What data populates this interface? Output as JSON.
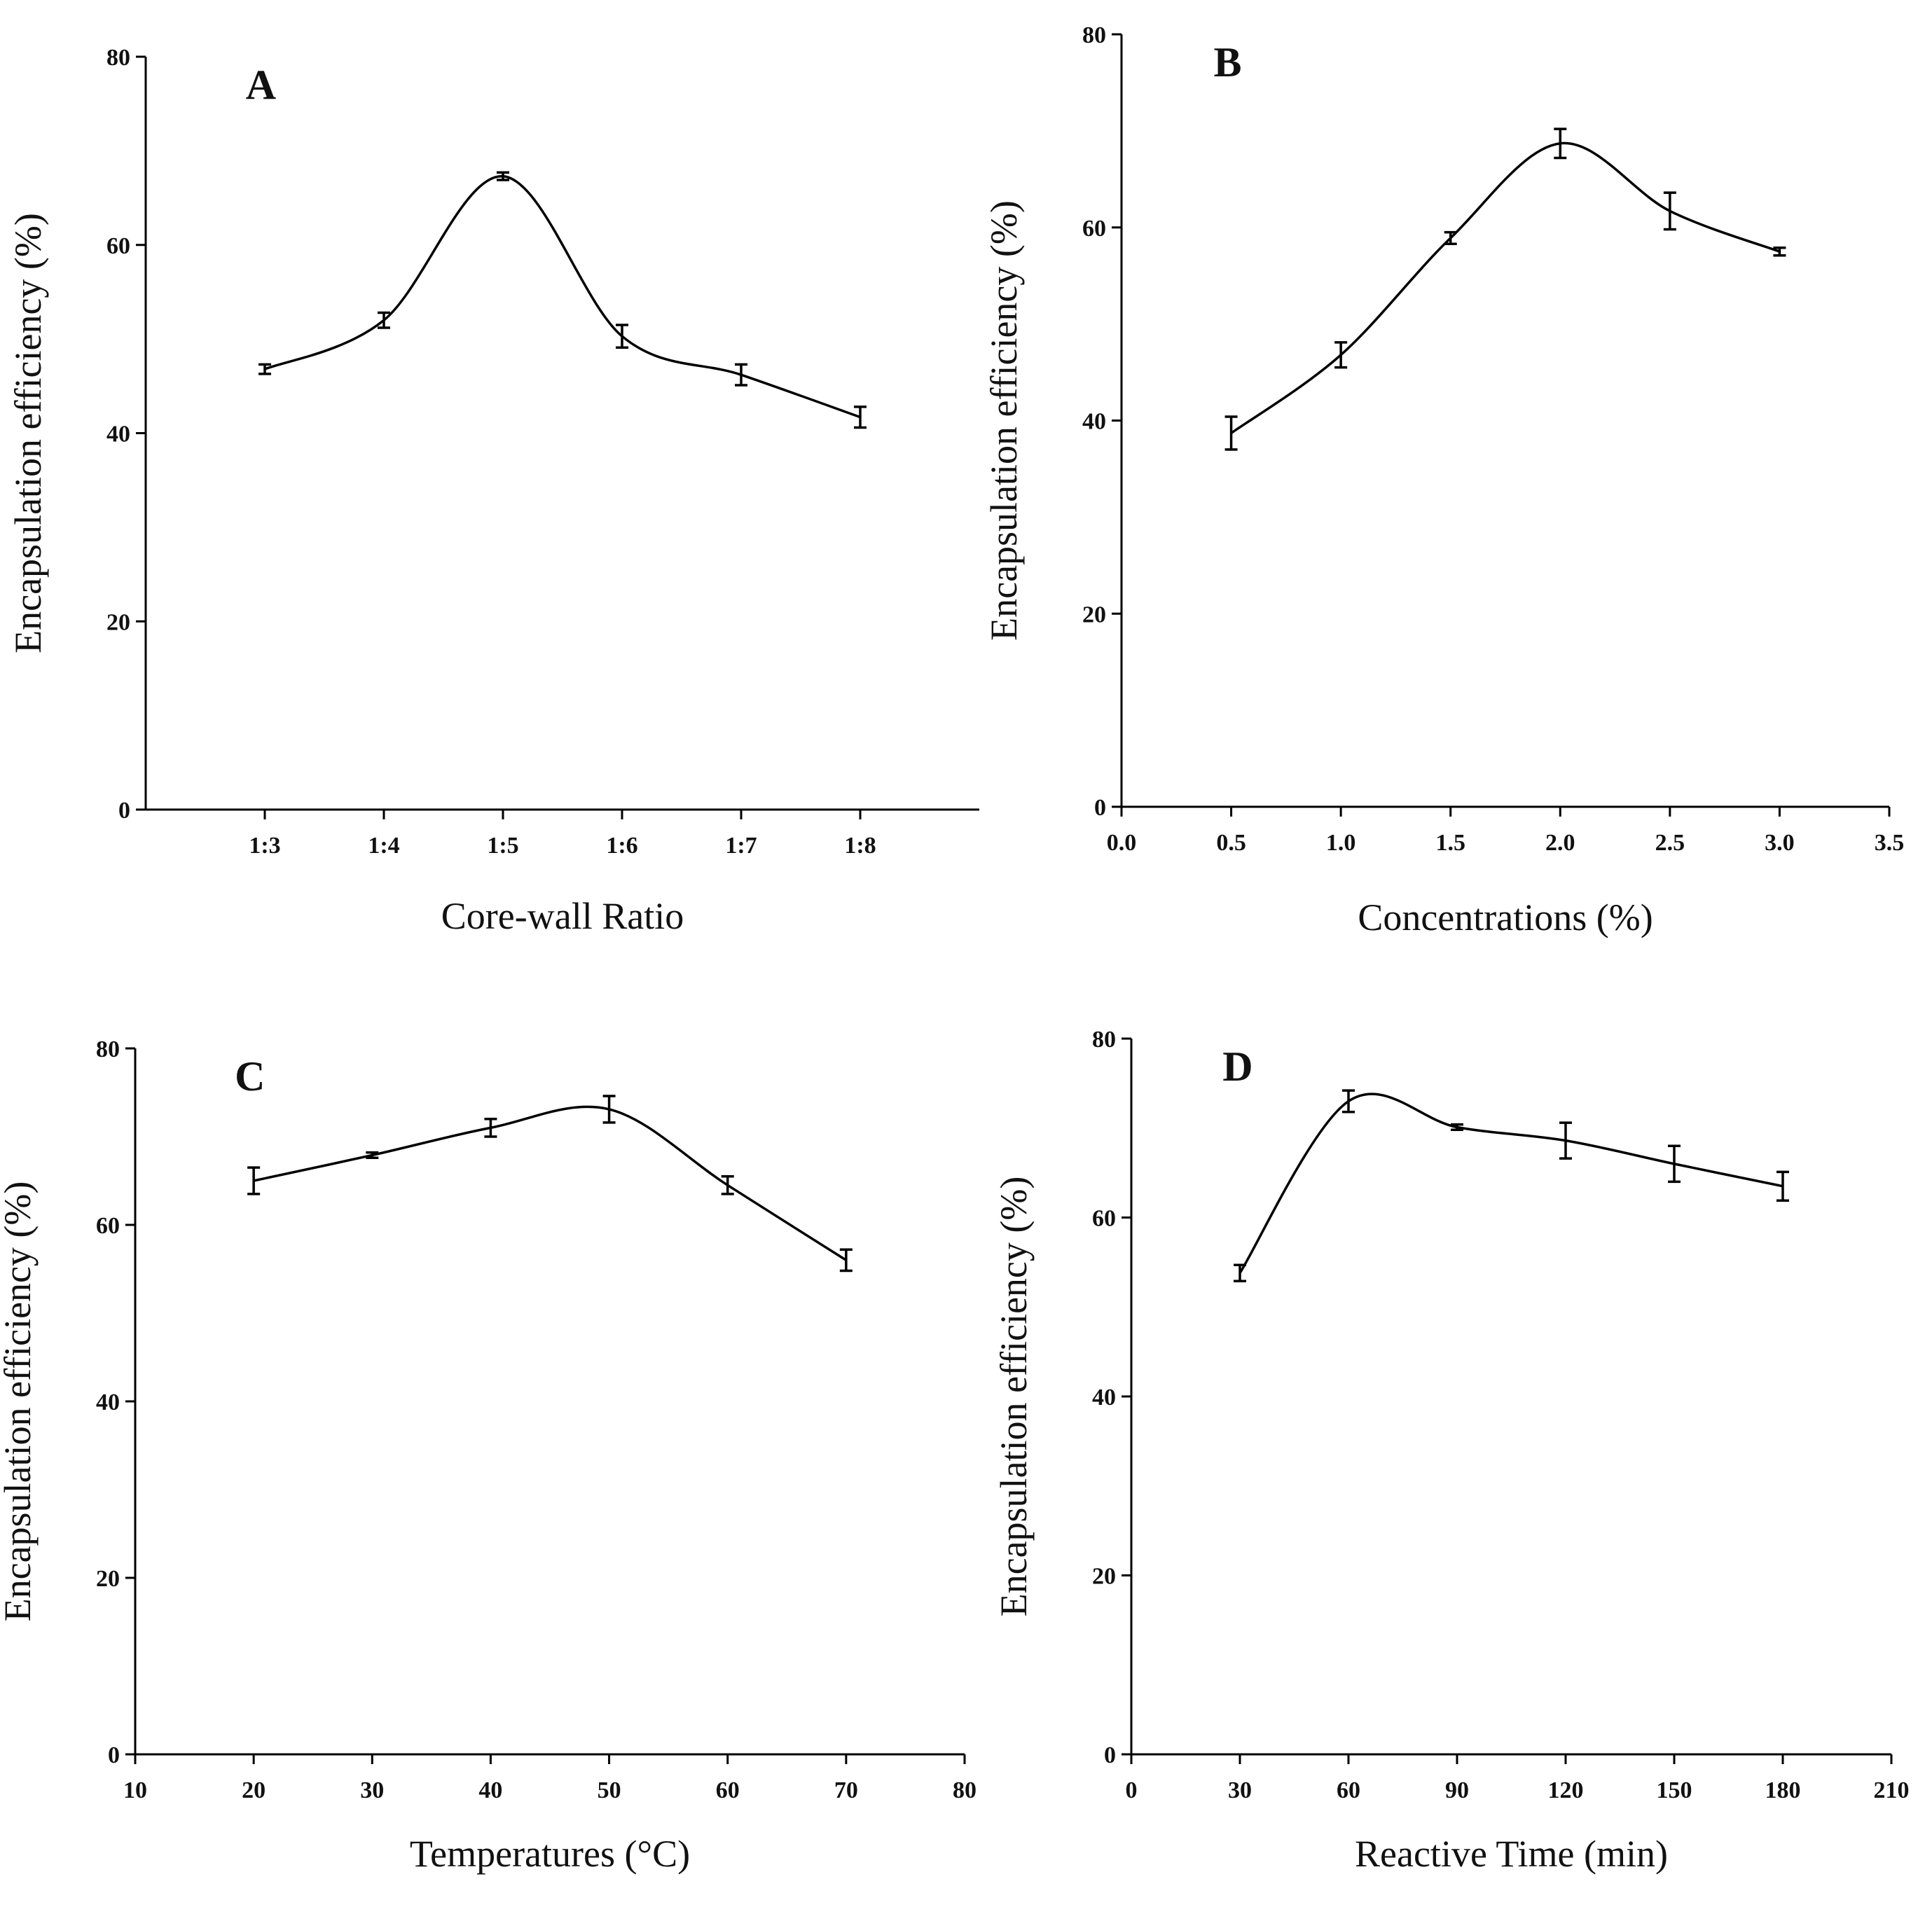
{
  "chart_data": [
    {
      "type": "line",
      "panel_label": "A",
      "xlabel": "Core-wall Ratio",
      "ylabel": "Encapsulation efficiency (%)",
      "categories": [
        "1:3",
        "1:4",
        "1:5",
        "1:6",
        "1:7",
        "1:8"
      ],
      "values": [
        46.8,
        52,
        67.3,
        50.3,
        46.2,
        41.7
      ],
      "errors": [
        0.5,
        0.8,
        0.4,
        1.2,
        1.1,
        1.1
      ],
      "color": "#000000",
      "ylim": [
        0,
        80
      ],
      "yticks": [
        0,
        20,
        40,
        60,
        80
      ]
    },
    {
      "type": "line",
      "panel_label": "B",
      "xlabel": "Concentrations (%)",
      "ylabel": "Encapsulation efficiency (%)",
      "x": [
        0.5,
        1.0,
        1.5,
        2.0,
        2.5,
        3.0
      ],
      "values": [
        38.7,
        46.8,
        58.9,
        68.7,
        61.7,
        57.5
      ],
      "errors": [
        1.7,
        1.3,
        0.6,
        1.5,
        1.9,
        0.4
      ],
      "color": "#000000",
      "xlim": [
        0,
        3.5
      ],
      "xticks": [
        {
          "value": 0,
          "label": "0.0"
        },
        {
          "value": 0.5,
          "label": "0.5"
        },
        {
          "value": 1,
          "label": "1.0"
        },
        {
          "value": 1.5,
          "label": "1.5"
        },
        {
          "value": 2,
          "label": "2.0"
        },
        {
          "value": 2.5,
          "label": "2.5"
        },
        {
          "value": 3,
          "label": "3.0"
        },
        {
          "value": 3.5,
          "label": "3.5"
        }
      ],
      "ylim": [
        0,
        80
      ],
      "yticks": [
        0,
        20,
        40,
        60,
        80
      ]
    },
    {
      "type": "line",
      "panel_label": "C",
      "xlabel": "Temperatures (°C)",
      "ylabel": "Encapsulation efficiency (%)",
      "x": [
        20,
        30,
        40,
        50,
        60,
        70
      ],
      "values": [
        65,
        67.9,
        71,
        73.1,
        64.5,
        56
      ],
      "errors": [
        1.5,
        0.3,
        1.0,
        1.5,
        1.0,
        1.2
      ],
      "color": "#000000",
      "xlim": [
        10,
        80
      ],
      "xticks": [
        10,
        20,
        30,
        40,
        50,
        60,
        70,
        80
      ],
      "ylim": [
        0,
        80
      ],
      "yticks": [
        0,
        20,
        40,
        60,
        80
      ]
    },
    {
      "type": "line",
      "panel_label": "D",
      "xlabel": "Reactive Time (min)",
      "ylabel": "Encapsulation efficiency (%)",
      "x": [
        30,
        60,
        90,
        120,
        150,
        180
      ],
      "values": [
        53.8,
        73,
        70.1,
        68.6,
        66,
        63.5
      ],
      "errors": [
        0.9,
        1.2,
        0.3,
        2.0,
        2.0,
        1.6
      ],
      "color": "#000000",
      "xlim": [
        0,
        210
      ],
      "xticks": [
        0,
        30,
        60,
        90,
        120,
        150,
        180,
        210
      ],
      "ylim": [
        0,
        80
      ],
      "yticks": [
        0,
        20,
        40,
        60,
        80
      ]
    }
  ]
}
